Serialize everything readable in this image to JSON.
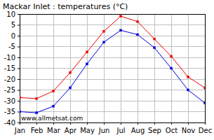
{
  "chart_data": {
    "type": "line",
    "title": "Mackar Inlet : temperatures (°C)",
    "categories": [
      "Jan",
      "Feb",
      "Mar",
      "Apr",
      "May",
      "Jun",
      "Jul",
      "Aug",
      "Sep",
      "Oct",
      "Nov",
      "Dec"
    ],
    "series": [
      {
        "color": "#ee0000",
        "marker": "square",
        "line_style": "solid",
        "values": [
          -28.5,
          -29,
          -25.5,
          -17,
          -7.5,
          2,
          9,
          6.5,
          -1.5,
          -9.5,
          -19,
          -24
        ]
      },
      {
        "color": "#0000dd",
        "marker": "square",
        "line_style": "solid",
        "values": [
          -35,
          -35.5,
          -32.5,
          -24,
          -13,
          -3,
          2.5,
          0.5,
          -5.5,
          -15,
          -25,
          -31
        ]
      }
    ],
    "ylim": [
      -40,
      10
    ],
    "yticks": [
      -40,
      -35,
      -30,
      -25,
      -20,
      -15,
      -10,
      -5,
      0,
      5,
      10
    ],
    "grid": true,
    "annotations": [
      "www.allmetsat.com"
    ]
  }
}
